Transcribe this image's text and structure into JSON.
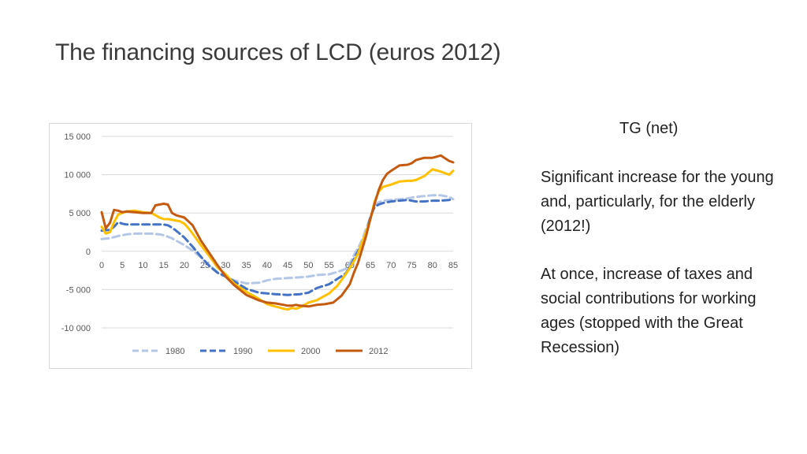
{
  "slide": {
    "title": "The financing sources of  LCD (euros 2012)",
    "side_heading": "TG (net)",
    "note_1": "Significant increase for the young and, particularly, for the elderly (2012!)",
    "note_2": "At once, increase of taxes and social contributions for working ages (stopped with the Great Recession)"
  },
  "chart_data": {
    "type": "line",
    "title": "",
    "xlabel": "",
    "ylabel": "",
    "xlim": [
      0,
      85
    ],
    "ylim": [
      -10000,
      15000
    ],
    "x_ticks": [
      0,
      5,
      10,
      15,
      20,
      25,
      30,
      35,
      40,
      45,
      50,
      55,
      60,
      65,
      70,
      75,
      80,
      85
    ],
    "x_tick_labels": [
      "0",
      "5",
      "10",
      "15",
      "20",
      "25",
      "30",
      "35",
      "40",
      "45",
      "50",
      "55",
      "60",
      "65",
      "70",
      "75",
      "80",
      "85"
    ],
    "y_ticks": [
      15000,
      10000,
      5000,
      0,
      -5000,
      -10000
    ],
    "y_tick_labels": [
      "15 000",
      "10 000",
      "5 000",
      "0",
      "-5 000",
      "-10 000"
    ],
    "grid": true,
    "legend_position": "bottom",
    "series": [
      {
        "name": "1980",
        "color": "#b4c7e7",
        "dash": "dash",
        "x": [
          0,
          2,
          4,
          6,
          8,
          10,
          12,
          14,
          15,
          16,
          17,
          18,
          20,
          22,
          24,
          26,
          28,
          30,
          32,
          35,
          38,
          40,
          42,
          45,
          48,
          50,
          52,
          55,
          57,
          59,
          60,
          61,
          62,
          63,
          64,
          65,
          66,
          67,
          68,
          70,
          72,
          74,
          75,
          76,
          78,
          80,
          82,
          84,
          85
        ],
        "values": [
          1600,
          1700,
          2000,
          2200,
          2300,
          2300,
          2300,
          2200,
          2100,
          1900,
          1700,
          1400,
          800,
          100,
          -800,
          -1800,
          -2700,
          -3300,
          -3800,
          -4200,
          -4100,
          -3800,
          -3600,
          -3500,
          -3400,
          -3300,
          -3100,
          -3000,
          -2700,
          -2300,
          -1600,
          -500,
          400,
          1500,
          3000,
          4500,
          6000,
          6400,
          6600,
          6700,
          6800,
          6900,
          7000,
          7100,
          7200,
          7300,
          7300,
          7100,
          6800
        ]
      },
      {
        "name": "1990",
        "color": "#4472c4",
        "dash": "dash",
        "x": [
          0,
          2,
          3,
          4,
          5,
          6,
          8,
          10,
          12,
          14,
          15,
          16,
          17,
          18,
          20,
          22,
          24,
          26,
          28,
          30,
          32,
          35,
          38,
          40,
          42,
          45,
          48,
          50,
          52,
          55,
          57,
          59,
          60,
          61,
          62,
          63,
          64,
          65,
          66,
          67,
          68,
          70,
          72,
          74,
          75,
          76,
          78,
          80,
          82,
          84,
          85
        ],
        "values": [
          2700,
          2800,
          3200,
          3800,
          3600,
          3500,
          3500,
          3500,
          3500,
          3500,
          3500,
          3400,
          3100,
          2700,
          1800,
          600,
          -700,
          -1900,
          -2800,
          -3300,
          -3900,
          -4900,
          -5400,
          -5500,
          -5600,
          -5700,
          -5600,
          -5400,
          -4800,
          -4300,
          -3600,
          -2900,
          -2100,
          -1000,
          0,
          1000,
          2500,
          4500,
          5800,
          6100,
          6300,
          6500,
          6600,
          6700,
          6600,
          6500,
          6500,
          6600,
          6600,
          6700,
          6800
        ]
      },
      {
        "name": "2000",
        "color": "#ffc000",
        "dash": "solid",
        "x": [
          0,
          1,
          2,
          3,
          4,
          5,
          6,
          8,
          10,
          12,
          14,
          15,
          16,
          17,
          18,
          19,
          20,
          21,
          22,
          24,
          26,
          28,
          30,
          32,
          35,
          38,
          40,
          42,
          44,
          45,
          46,
          47,
          48,
          50,
          52,
          55,
          57,
          59,
          60,
          61,
          62,
          63,
          64,
          65,
          66,
          67,
          68,
          70,
          72,
          74,
          75,
          76,
          78,
          80,
          82,
          84,
          85
        ],
        "values": [
          3200,
          2300,
          2500,
          3800,
          4800,
          5000,
          5200,
          5300,
          5100,
          5000,
          4400,
          4200,
          4200,
          4100,
          4000,
          3900,
          3600,
          3000,
          2300,
          800,
          -600,
          -2100,
          -3000,
          -4200,
          -5300,
          -6200,
          -6900,
          -7200,
          -7500,
          -7600,
          -7400,
          -7500,
          -7300,
          -6700,
          -6400,
          -5500,
          -4500,
          -3000,
          -2200,
          -1300,
          -300,
          1200,
          2600,
          4200,
          6500,
          7800,
          8400,
          8700,
          9100,
          9200,
          9200,
          9300,
          9800,
          10700,
          10400,
          10000,
          10500
        ]
      },
      {
        "name": "2012",
        "color": "#c55a11",
        "dash": "solid",
        "x": [
          0,
          1,
          2,
          3,
          4,
          5,
          6,
          8,
          10,
          12,
          13,
          14,
          15,
          16,
          17,
          18,
          20,
          22,
          24,
          26,
          28,
          30,
          32,
          35,
          38,
          40,
          42,
          44,
          45,
          46,
          47,
          48,
          50,
          52,
          54,
          56,
          58,
          60,
          61,
          62,
          63,
          64,
          65,
          66,
          67,
          68,
          69,
          70,
          72,
          74,
          75,
          76,
          78,
          80,
          82,
          84,
          85
        ],
        "values": [
          5100,
          3000,
          3700,
          5400,
          5300,
          5100,
          5200,
          5100,
          5000,
          5000,
          6000,
          6100,
          6200,
          6100,
          5000,
          4700,
          4400,
          3400,
          1400,
          -200,
          -1800,
          -3300,
          -4400,
          -5700,
          -6400,
          -6700,
          -6800,
          -7000,
          -7100,
          -7100,
          -7000,
          -7100,
          -7200,
          -7000,
          -6900,
          -6700,
          -5800,
          -4300,
          -2800,
          -1500,
          300,
          2100,
          4300,
          6200,
          8000,
          9300,
          10100,
          10500,
          11200,
          11300,
          11500,
          11900,
          12200,
          12200,
          12500,
          11800,
          11600
        ]
      }
    ]
  }
}
